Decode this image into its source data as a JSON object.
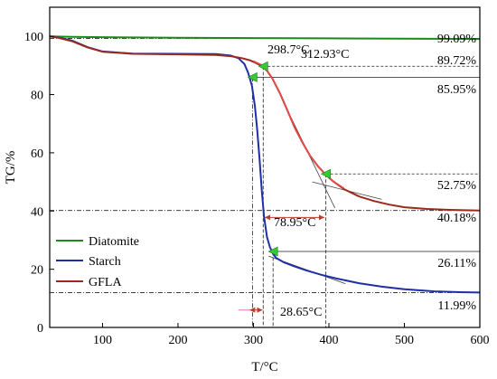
{
  "chart_data": {
    "type": "line",
    "xlabel": "T/°C",
    "ylabel": "TG/%",
    "xlim": [
      30,
      600
    ],
    "ylim": [
      0,
      110
    ],
    "xticks": [
      100,
      200,
      300,
      400,
      500,
      600
    ],
    "yticks": [
      0,
      20,
      40,
      60,
      80,
      100
    ],
    "grid": false,
    "legend_position": "bottom-left",
    "series": [
      {
        "name": "Diatomite",
        "color": "#1a8a1a",
        "x": [
          30,
          60,
          100,
          200,
          300,
          400,
          500,
          600
        ],
        "y": [
          100,
          99.8,
          99.7,
          99.5,
          99.4,
          99.3,
          99.2,
          99.09
        ]
      },
      {
        "name": "Starch",
        "color": "#1f2fa8",
        "x": [
          30,
          40,
          60,
          80,
          100,
          140,
          200,
          250,
          270,
          280,
          288,
          293,
          298,
          302,
          305,
          308,
          311,
          314,
          318,
          322,
          326,
          330,
          340,
          355,
          370,
          390,
          410,
          440,
          470,
          500,
          540,
          570,
          600
        ],
        "y": [
          100,
          99.7,
          98.5,
          96.3,
          94.8,
          94.1,
          94.0,
          93.9,
          93.4,
          92.5,
          90.5,
          87.5,
          83,
          76,
          68,
          58,
          47,
          38,
          31,
          27.5,
          25.3,
          23.9,
          22.4,
          20.9,
          19.6,
          18.1,
          16.8,
          15.2,
          14.0,
          13.1,
          12.4,
          12.15,
          11.99
        ]
      },
      {
        "name": "GFLA",
        "color": "#9a2a1a",
        "x": [
          30,
          40,
          60,
          80,
          100,
          140,
          200,
          250,
          270,
          285,
          295,
          302,
          308,
          313,
          318,
          325,
          335,
          345,
          355,
          365,
          375,
          385,
          395,
          405,
          420,
          440,
          460,
          480,
          500,
          530,
          560,
          600
        ],
        "y": [
          100,
          99.6,
          98.3,
          96.2,
          94.7,
          94.0,
          93.8,
          93.6,
          93.2,
          92.5,
          91.8,
          91.0,
          90.2,
          89.5,
          88.2,
          85.5,
          80.5,
          74.5,
          68.5,
          63.5,
          59.0,
          55.5,
          52.7,
          50.3,
          47.5,
          45.0,
          43.4,
          42.2,
          41.3,
          40.7,
          40.4,
          40.18
        ]
      },
      {
        "name": "",
        "color": "#e84a4a",
        "x": [
          300,
          305,
          310,
          313,
          318,
          325,
          335,
          345,
          355,
          365,
          375,
          385,
          395,
          405,
          420
        ],
        "y": [
          91.5,
          90.9,
          90.3,
          89.6,
          88.2,
          85.5,
          80.5,
          74.5,
          68.5,
          63.5,
          59.0,
          55.5,
          52.7,
          50.3,
          47.8
        ]
      }
    ],
    "annotations": [
      {
        "text": "99.09%",
        "x": 600,
        "y": 99.09
      },
      {
        "text": "89.72%",
        "x": 600,
        "y": 89.72
      },
      {
        "text": "85.95%",
        "x": 600,
        "y": 85.95
      },
      {
        "text": "52.75%",
        "x": 600,
        "y": 52.75
      },
      {
        "text": "40.18%",
        "x": 600,
        "y": 40.18
      },
      {
        "text": "26.11%",
        "x": 600,
        "y": 26.11
      },
      {
        "text": "11.99%",
        "x": 600,
        "y": 11.99
      },
      {
        "text": "298.7°C",
        "x": 298.7,
        "y": 86
      },
      {
        "text": "312.93°C",
        "x": 312.93,
        "y": 89.72
      },
      {
        "text": "78.95°C",
        "x": 355,
        "y": 40
      },
      {
        "text": "28.65°C",
        "x": 312,
        "y": 2
      }
    ]
  }
}
